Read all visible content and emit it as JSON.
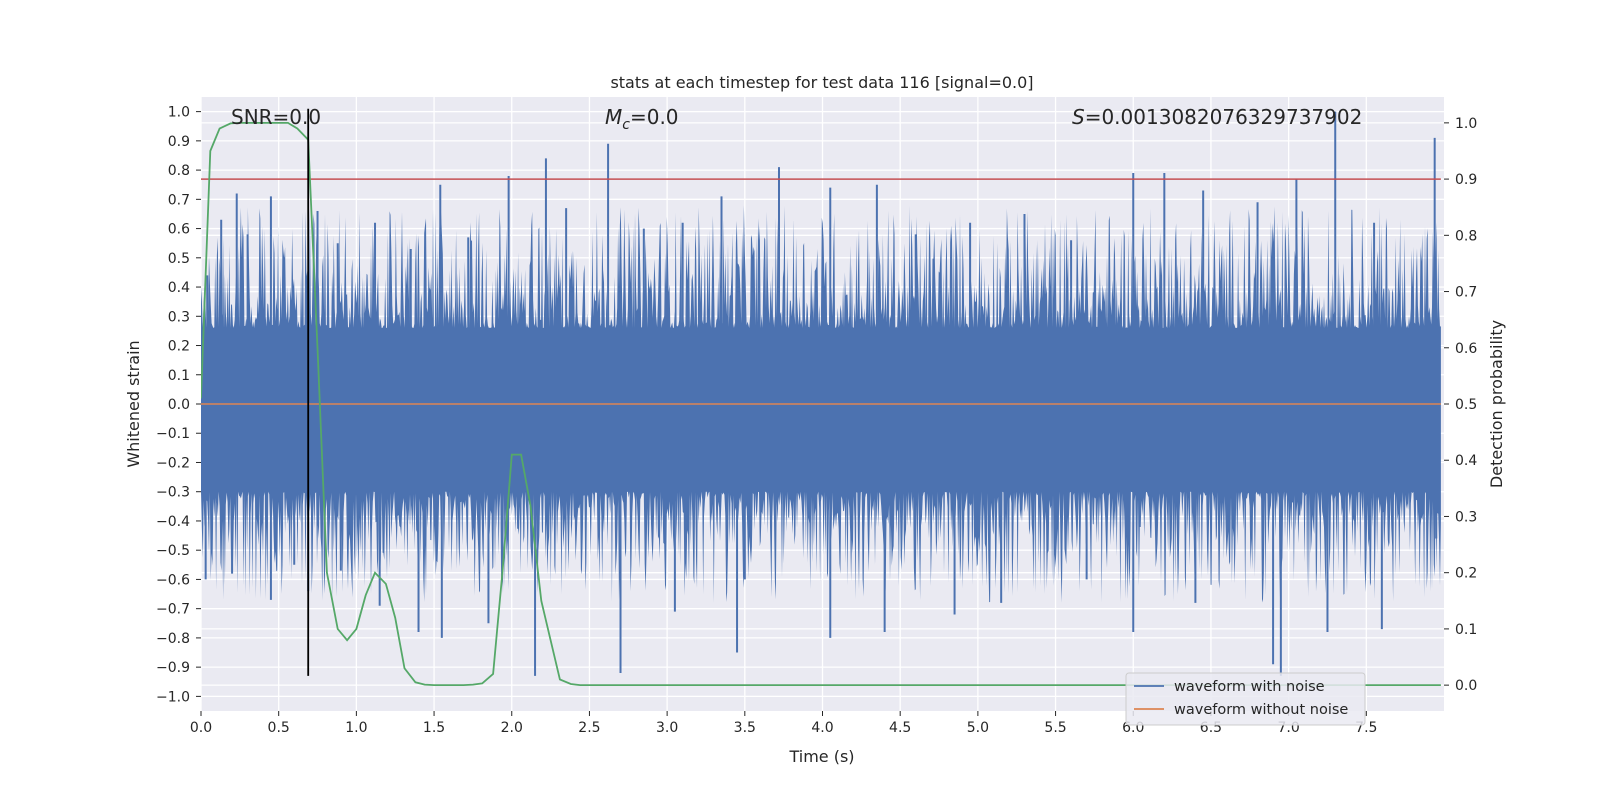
{
  "chart_data": {
    "type": "line",
    "title": "stats at each timestep for test data 116 [signal=0.0]",
    "xlabel": "Time (s)",
    "ylabel": "Whitened strain",
    "y2label": "Detection probability",
    "xlim": [
      0.0,
      8.0
    ],
    "ylim": [
      -1.05,
      1.05
    ],
    "y2lim": [
      -0.046,
      1.046
    ],
    "x_ticks": [
      "0.0",
      "0.5",
      "1.0",
      "1.5",
      "2.0",
      "2.5",
      "3.0",
      "3.5",
      "4.0",
      "4.5",
      "5.0",
      "5.5",
      "6.0",
      "6.5",
      "7.0",
      "7.5"
    ],
    "y_ticks": [
      "1.0",
      "0.9",
      "0.8",
      "0.7",
      "0.6",
      "0.5",
      "0.4",
      "0.3",
      "0.2",
      "0.1",
      "0.0",
      "−0.1",
      "−0.2",
      "−0.3",
      "−0.4",
      "−0.5",
      "−0.6",
      "−0.7",
      "−0.8",
      "−0.9",
      "−1.0"
    ],
    "y2_ticks": [
      "1.0",
      "0.9",
      "0.8",
      "0.7",
      "0.6",
      "0.5",
      "0.4",
      "0.3",
      "0.2",
      "0.1",
      "0.0"
    ],
    "grid": true,
    "legend_placement": "lower-right",
    "annotations": {
      "snr": "SNR=0.0",
      "mc_symbol": "M",
      "mc_sub": "c",
      "mc_value": "=0.0",
      "s_symbol": "S",
      "s_value": "=0.0013082076329737902"
    },
    "series": [
      {
        "name": "waveform with noise",
        "axis": "left",
        "color": "#4c72b0",
        "description_range": [
          -0.93,
          1.0
        ],
        "envelope_peaks": [
          [
            0.04,
            0.44
          ],
          [
            0.13,
            0.63
          ],
          [
            0.23,
            0.72
          ],
          [
            0.3,
            0.58
          ],
          [
            0.45,
            0.71
          ],
          [
            0.68,
            0.37
          ],
          [
            0.75,
            0.66
          ],
          [
            0.88,
            0.55
          ],
          [
            1.12,
            0.62
          ],
          [
            1.35,
            0.53
          ],
          [
            1.54,
            0.75
          ],
          [
            1.72,
            0.57
          ],
          [
            1.98,
            0.78
          ],
          [
            2.22,
            0.84
          ],
          [
            2.35,
            0.67
          ],
          [
            2.62,
            0.89
          ],
          [
            2.85,
            0.6
          ],
          [
            3.1,
            0.62
          ],
          [
            3.35,
            0.71
          ],
          [
            3.72,
            0.81
          ],
          [
            4.05,
            0.74
          ],
          [
            4.35,
            0.75
          ],
          [
            4.6,
            0.58
          ],
          [
            4.95,
            0.62
          ],
          [
            5.3,
            0.65
          ],
          [
            5.6,
            0.56
          ],
          [
            6.0,
            0.79
          ],
          [
            6.2,
            0.79
          ],
          [
            6.45,
            0.73
          ],
          [
            6.8,
            0.69
          ],
          [
            7.05,
            0.77
          ],
          [
            7.3,
            1.0
          ],
          [
            7.55,
            0.62
          ],
          [
            7.94,
            0.91
          ]
        ],
        "envelope_troughs": [
          [
            0.03,
            -0.6
          ],
          [
            0.2,
            -0.58
          ],
          [
            0.45,
            -0.67
          ],
          [
            0.6,
            -0.55
          ],
          [
            0.69,
            -0.64
          ],
          [
            0.9,
            -0.57
          ],
          [
            1.15,
            -0.69
          ],
          [
            1.4,
            -0.78
          ],
          [
            1.55,
            -0.8
          ],
          [
            1.85,
            -0.75
          ],
          [
            2.15,
            -0.93
          ],
          [
            2.7,
            -0.92
          ],
          [
            3.05,
            -0.71
          ],
          [
            3.45,
            -0.85
          ],
          [
            3.5,
            -0.6
          ],
          [
            4.05,
            -0.8
          ],
          [
            4.4,
            -0.78
          ],
          [
            4.85,
            -0.72
          ],
          [
            5.15,
            -0.68
          ],
          [
            5.7,
            -0.6
          ],
          [
            6.0,
            -0.78
          ],
          [
            6.4,
            -0.68
          ],
          [
            6.9,
            -0.89
          ],
          [
            6.95,
            -0.93
          ],
          [
            7.25,
            -0.78
          ],
          [
            7.6,
            -0.77
          ],
          [
            7.95,
            -0.46
          ]
        ]
      },
      {
        "name": "waveform without noise",
        "axis": "left",
        "color": "#dd8452",
        "x": [
          0.0,
          7.98
        ],
        "y": [
          0.0,
          0.0
        ]
      },
      {
        "axis": "right",
        "color": "#55a868",
        "x": [
          0.0,
          0.06,
          0.12,
          0.19,
          0.25,
          0.31,
          0.38,
          0.44,
          0.5,
          0.56,
          0.62,
          0.69,
          0.75,
          0.81,
          0.88,
          0.94,
          1.0,
          1.06,
          1.12,
          1.19,
          1.25,
          1.31,
          1.38,
          1.44,
          1.5,
          1.56,
          1.62,
          1.69,
          1.75,
          1.81,
          1.88,
          1.94,
          2.0,
          2.06,
          2.12,
          2.19,
          2.25,
          2.31,
          2.38,
          2.44,
          2.5,
          3.0,
          4.0,
          5.0,
          6.0,
          7.0,
          7.98
        ],
        "y": [
          0.51,
          0.95,
          0.99,
          0.999,
          1.0,
          1.0,
          1.0,
          1.0,
          1.0,
          1.0,
          0.99,
          0.97,
          0.6,
          0.2,
          0.1,
          0.08,
          0.1,
          0.16,
          0.2,
          0.18,
          0.12,
          0.03,
          0.005,
          0.001,
          0.0,
          0.0,
          0.0,
          0.0,
          0.001,
          0.003,
          0.02,
          0.2,
          0.41,
          0.41,
          0.32,
          0.15,
          0.08,
          0.01,
          0.002,
          0.0,
          0.0,
          0.0,
          0.0,
          0.0,
          0.0,
          0.0,
          0.0
        ]
      },
      {
        "axis": "right",
        "color": "#c44e52",
        "x": [
          0.0,
          7.98
        ],
        "y": [
          0.9,
          0.9
        ]
      },
      {
        "axis": "left",
        "color": "#000000",
        "x": [
          0.69,
          0.69
        ],
        "y": [
          -0.93,
          1.01
        ]
      }
    ]
  }
}
